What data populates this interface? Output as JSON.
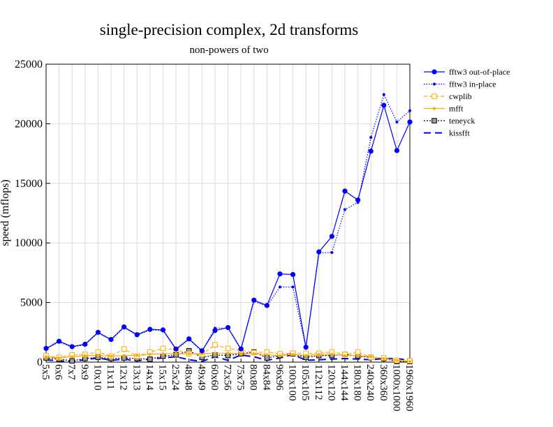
{
  "chart_data": {
    "type": "line",
    "title": "single-precision complex, 2d transforms",
    "subtitle": "non-powers of two",
    "xlabel": "",
    "ylabel": "speed (mflops)",
    "ylim": [
      0,
      25000
    ],
    "yticks": [
      0,
      5000,
      10000,
      15000,
      20000,
      25000
    ],
    "grid": true,
    "legend_position": "top-right outside",
    "categories": [
      "5x5",
      "6x6",
      "7x7",
      "9x9",
      "10x10",
      "11x11",
      "12x12",
      "13x13",
      "14x14",
      "15x15",
      "25x24",
      "48x48",
      "49x49",
      "60x60",
      "72x56",
      "75x75",
      "80x80",
      "84x84",
      "96x96",
      "100x100",
      "105x105",
      "112x112",
      "120x120",
      "144x144",
      "180x180",
      "240x240",
      "360x360",
      "1000x1000",
      "1960x1960"
    ],
    "series": [
      {
        "name": "fftw3 out-of-place",
        "color": "#0000ff",
        "style": "solid",
        "marker": "circle",
        "values": [
          1150,
          1750,
          1300,
          1500,
          2500,
          1900,
          2950,
          2300,
          2750,
          2700,
          1100,
          1950,
          950,
          2650,
          2900,
          1100,
          5200,
          4750,
          7400,
          7350,
          1250,
          9250,
          10550,
          14350,
          13600,
          17700,
          21550,
          17750,
          20150
        ]
      },
      {
        "name": "fftw3 in-place",
        "color": "#0000ff",
        "style": "dotted",
        "marker": "dot",
        "values": [
          1100,
          1700,
          1250,
          1450,
          2450,
          1850,
          2900,
          2250,
          2700,
          2650,
          1050,
          1900,
          900,
          2850,
          2850,
          1050,
          5100,
          4700,
          6300,
          6300,
          1200,
          9150,
          9200,
          12800,
          13400,
          18850,
          22450,
          20150,
          21100
        ]
      },
      {
        "name": "cwplib",
        "color": "#ffaa00",
        "style": "dash",
        "marker": "open-square",
        "values": [
          550,
          400,
          600,
          650,
          850,
          500,
          1100,
          500,
          850,
          1150,
          1050,
          700,
          650,
          1450,
          1150,
          1000,
          800,
          850,
          700,
          750,
          750,
          750,
          850,
          650,
          850,
          400,
          350,
          150,
          100
        ]
      },
      {
        "name": "mfft",
        "color": "#ffaa00",
        "style": "solid",
        "marker": "dot",
        "values": [
          450,
          350,
          450,
          550,
          550,
          500,
          550,
          550,
          650,
          700,
          700,
          700,
          700,
          750,
          750,
          700,
          700,
          600,
          550,
          650,
          550,
          650,
          650,
          550,
          550,
          450,
          300,
          150,
          50
        ]
      },
      {
        "name": "teneyck",
        "color": "#000000",
        "style": "dot",
        "marker": "gray-square",
        "values": [
          350,
          250,
          100,
          300,
          400,
          300,
          350,
          300,
          250,
          500,
          600,
          950,
          400,
          600,
          550,
          700,
          850,
          350,
          550,
          700,
          400,
          550,
          550,
          650,
          500,
          400,
          300,
          50,
          50
        ]
      },
      {
        "name": "kissfft",
        "color": "#0000ff",
        "style": "longdash",
        "marker": "none",
        "values": [
          200,
          100,
          50,
          200,
          350,
          150,
          250,
          100,
          250,
          350,
          450,
          200,
          50,
          450,
          150,
          600,
          450,
          150,
          350,
          650,
          150,
          200,
          250,
          300,
          250,
          200,
          300,
          300,
          150
        ]
      }
    ]
  }
}
